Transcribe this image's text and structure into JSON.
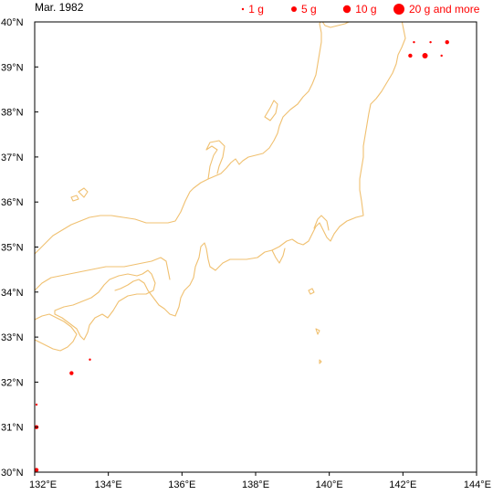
{
  "title": "Mar. 1982",
  "colors": {
    "marker": "#ff0000",
    "coast": "#f0c070",
    "frame": "#000000"
  },
  "legend": [
    {
      "label": "1 g",
      "grams": 1
    },
    {
      "label": "5 g",
      "grams": 5
    },
    {
      "label": "10 g",
      "grams": 10
    },
    {
      "label": "20 g and more",
      "grams": 20
    }
  ],
  "chart_data": {
    "type": "scatter",
    "xlim": [
      132,
      144
    ],
    "ylim": [
      30,
      40
    ],
    "x_ticks": [
      {
        "value": 132,
        "label": "132°E"
      },
      {
        "value": 134,
        "label": "134°E"
      },
      {
        "value": 136,
        "label": "136°E"
      },
      {
        "value": 138,
        "label": "138°E"
      },
      {
        "value": 140,
        "label": "140°E"
      },
      {
        "value": 142,
        "label": "142°E"
      },
      {
        "value": 144,
        "label": "144°E"
      }
    ],
    "y_ticks": [
      {
        "value": 30,
        "label": "30°N"
      },
      {
        "value": 31,
        "label": "31°N"
      },
      {
        "value": 32,
        "label": "32°N"
      },
      {
        "value": 33,
        "label": "33°N"
      },
      {
        "value": 34,
        "label": "34°N"
      },
      {
        "value": 35,
        "label": "35°N"
      },
      {
        "value": 36,
        "label": "36°N"
      },
      {
        "value": 37,
        "label": "37°N"
      },
      {
        "value": 38,
        "label": "38°N"
      },
      {
        "value": 39,
        "label": "39°N"
      },
      {
        "value": 40,
        "label": "40°N"
      }
    ],
    "points": [
      {
        "lon": 132.05,
        "lat": 30.05,
        "grams": 2
      },
      {
        "lon": 132.05,
        "lat": 31.0,
        "grams": 2
      },
      {
        "lon": 132.05,
        "lat": 31.5,
        "grams": 1
      },
      {
        "lon": 133.0,
        "lat": 32.2,
        "grams": 2
      },
      {
        "lon": 133.5,
        "lat": 32.5,
        "grams": 1
      },
      {
        "lon": 142.2,
        "lat": 39.25,
        "grams": 3
      },
      {
        "lon": 142.3,
        "lat": 39.55,
        "grams": 1
      },
      {
        "lon": 142.6,
        "lat": 39.25,
        "grams": 5
      },
      {
        "lon": 142.75,
        "lat": 39.55,
        "grams": 1
      },
      {
        "lon": 143.05,
        "lat": 39.25,
        "grams": 1
      },
      {
        "lon": 143.2,
        "lat": 39.55,
        "grams": 2
      }
    ]
  }
}
